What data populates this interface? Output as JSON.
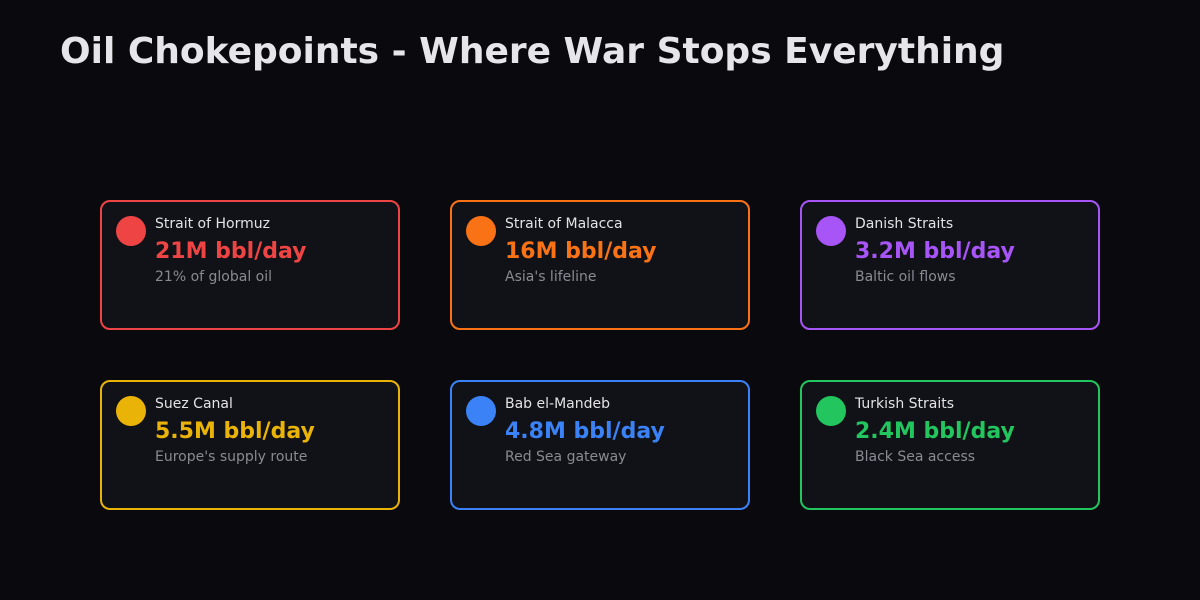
{
  "title": "Oil Chokepoints - Where War Stops Everything",
  "chokepoints": [
    {
      "name": "Strait of Hormuz",
      "flow": "21M bbl/day",
      "note": "21% of global oil",
      "color": "#ef4444"
    },
    {
      "name": "Strait of Malacca",
      "flow": "16M bbl/day",
      "note": "Asia's lifeline",
      "color": "#f97316"
    },
    {
      "name": "Danish Straits",
      "flow": "3.2M bbl/day",
      "note": "Baltic oil flows",
      "color": "#a855f7"
    },
    {
      "name": "Suez Canal",
      "flow": "5.5M bbl/day",
      "note": "Europe's supply route",
      "color": "#eab308"
    },
    {
      "name": "Bab el-Mandeb",
      "flow": "4.8M bbl/day",
      "note": "Red Sea gateway",
      "color": "#3b82f6"
    },
    {
      "name": "Turkish Straits",
      "flow": "2.4M bbl/day",
      "note": "Black Sea access",
      "color": "#22c55e"
    }
  ]
}
